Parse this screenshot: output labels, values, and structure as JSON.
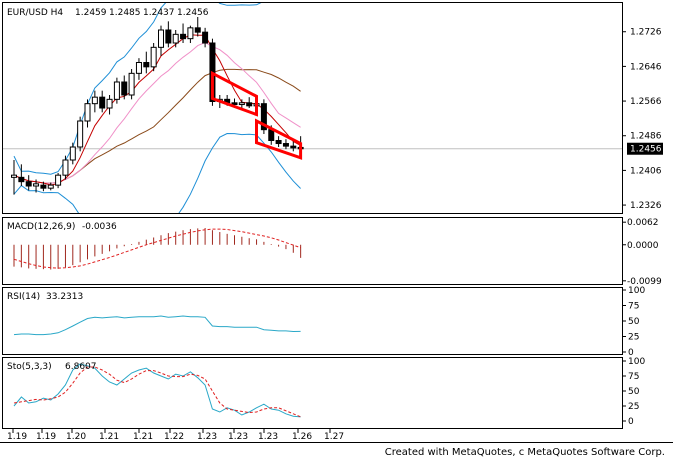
{
  "chart_data": [
    {
      "type": "candlestick",
      "title": "EUR/USD H4",
      "ohlc_readout": [
        "1.2459",
        "1.2485",
        "1.2437",
        "1.2456"
      ],
      "current_price_label": "1.2456",
      "current_price": 1.2456,
      "ylim": [
        1.231,
        1.279
      ],
      "y_ticks": [
        "1.2726",
        "1.2646",
        "1.2566",
        "1.2486",
        "1.2406",
        "1.2326"
      ],
      "x_tick_labels": [
        "1.19",
        "1.19",
        "1.20",
        "1.21",
        "1.21",
        "1.22",
        "1.23",
        "1.23",
        "1.23",
        "1.26",
        "1.27"
      ],
      "candles": [
        {
          "o": 1.239,
          "h": 1.243,
          "l": 1.235,
          "c": 1.2395
        },
        {
          "o": 1.239,
          "h": 1.242,
          "l": 1.237,
          "c": 1.238
        },
        {
          "o": 1.238,
          "h": 1.2395,
          "l": 1.236,
          "c": 1.237
        },
        {
          "o": 1.237,
          "h": 1.2385,
          "l": 1.2355,
          "c": 1.2375
        },
        {
          "o": 1.2372,
          "h": 1.238,
          "l": 1.2358,
          "c": 1.2365
        },
        {
          "o": 1.2365,
          "h": 1.2378,
          "l": 1.236,
          "c": 1.2372
        },
        {
          "o": 1.2372,
          "h": 1.24,
          "l": 1.2365,
          "c": 1.2395
        },
        {
          "o": 1.2395,
          "h": 1.244,
          "l": 1.2385,
          "c": 1.243
        },
        {
          "o": 1.243,
          "h": 1.247,
          "l": 1.242,
          "c": 1.246
        },
        {
          "o": 1.246,
          "h": 1.253,
          "l": 1.245,
          "c": 1.252
        },
        {
          "o": 1.252,
          "h": 1.257,
          "l": 1.2505,
          "c": 1.256
        },
        {
          "o": 1.256,
          "h": 1.259,
          "l": 1.254,
          "c": 1.2575
        },
        {
          "o": 1.2575,
          "h": 1.259,
          "l": 1.254,
          "c": 1.255
        },
        {
          "o": 1.255,
          "h": 1.258,
          "l": 1.2535,
          "c": 1.257
        },
        {
          "o": 1.257,
          "h": 1.262,
          "l": 1.256,
          "c": 1.261
        },
        {
          "o": 1.261,
          "h": 1.2625,
          "l": 1.257,
          "c": 1.258
        },
        {
          "o": 1.258,
          "h": 1.264,
          "l": 1.257,
          "c": 1.263
        },
        {
          "o": 1.263,
          "h": 1.2665,
          "l": 1.2615,
          "c": 1.2655
        },
        {
          "o": 1.2655,
          "h": 1.268,
          "l": 1.263,
          "c": 1.2645
        },
        {
          "o": 1.2645,
          "h": 1.27,
          "l": 1.2635,
          "c": 1.269
        },
        {
          "o": 1.269,
          "h": 1.274,
          "l": 1.267,
          "c": 1.273
        },
        {
          "o": 1.273,
          "h": 1.275,
          "l": 1.269,
          "c": 1.27
        },
        {
          "o": 1.27,
          "h": 1.273,
          "l": 1.269,
          "c": 1.272
        },
        {
          "o": 1.272,
          "h": 1.2745,
          "l": 1.27,
          "c": 1.271
        },
        {
          "o": 1.271,
          "h": 1.274,
          "l": 1.27,
          "c": 1.2735
        },
        {
          "o": 1.2735,
          "h": 1.276,
          "l": 1.2715,
          "c": 1.2725
        },
        {
          "o": 1.2725,
          "h": 1.2735,
          "l": 1.269,
          "c": 1.27
        },
        {
          "o": 1.27,
          "h": 1.271,
          "l": 1.2555,
          "c": 1.2565
        },
        {
          "o": 1.2565,
          "h": 1.258,
          "l": 1.255,
          "c": 1.257
        },
        {
          "o": 1.257,
          "h": 1.258,
          "l": 1.2555,
          "c": 1.2562
        },
        {
          "o": 1.2562,
          "h": 1.2572,
          "l": 1.255,
          "c": 1.2558
        },
        {
          "o": 1.2558,
          "h": 1.257,
          "l": 1.2548,
          "c": 1.2562
        },
        {
          "o": 1.2562,
          "h": 1.2575,
          "l": 1.255,
          "c": 1.2555
        },
        {
          "o": 1.2555,
          "h": 1.2568,
          "l": 1.2545,
          "c": 1.256
        },
        {
          "o": 1.256,
          "h": 1.257,
          "l": 1.249,
          "c": 1.25
        },
        {
          "o": 1.25,
          "h": 1.251,
          "l": 1.2465,
          "c": 1.2475
        },
        {
          "o": 1.2475,
          "h": 1.2485,
          "l": 1.246,
          "c": 1.2468
        },
        {
          "o": 1.2468,
          "h": 1.2478,
          "l": 1.2455,
          "c": 1.2462
        },
        {
          "o": 1.2462,
          "h": 1.2475,
          "l": 1.245,
          "c": 1.2458
        },
        {
          "o": 1.2459,
          "h": 1.2485,
          "l": 1.2437,
          "c": 1.2456
        }
      ],
      "channels": [
        [
          [
            27,
            1.263
          ],
          [
            33,
            1.2577
          ],
          [
            33,
            1.2535
          ],
          [
            27,
            1.2572
          ]
        ],
        [
          [
            33,
            1.252
          ],
          [
            39,
            1.2468
          ],
          [
            39,
            1.2435
          ],
          [
            33,
            1.247
          ]
        ]
      ]
    },
    {
      "type": "bar",
      "title": "MACD(12,26,9)",
      "value_label": "-0.0036",
      "ylim": [
        -0.0105,
        0.0068
      ],
      "y_ticks": [
        "0.0062",
        "0.0000",
        "-0.0099"
      ],
      "macd": [
        -0.006,
        -0.0062,
        -0.0065,
        -0.0066,
        -0.0067,
        -0.0068,
        -0.0066,
        -0.0062,
        -0.0056,
        -0.0048,
        -0.004,
        -0.0032,
        -0.0025,
        -0.0018,
        -0.001,
        -0.0004,
        0.0002,
        0.0008,
        0.0014,
        0.002,
        0.0026,
        0.0032,
        0.0036,
        0.004,
        0.0043,
        0.0045,
        0.0046,
        0.004,
        0.0035,
        0.003,
        0.0026,
        0.0022,
        0.0018,
        0.0015,
        0.0008,
        0.0002,
        -0.0005,
        -0.0012,
        -0.0022,
        -0.0036
      ],
      "signal": [
        -0.004,
        -0.0046,
        -0.0052,
        -0.0057,
        -0.0061,
        -0.0063,
        -0.0064,
        -0.0063,
        -0.0061,
        -0.0058,
        -0.0053,
        -0.0047,
        -0.0041,
        -0.0035,
        -0.0028,
        -0.0021,
        -0.0014,
        -0.0007,
        0.0,
        0.0006,
        0.0012,
        0.0018,
        0.0024,
        0.0029,
        0.0034,
        0.0038,
        0.0041,
        0.0043,
        0.0043,
        0.0042,
        0.0039,
        0.0036,
        0.0032,
        0.0028,
        0.0024,
        0.0019,
        0.0013,
        0.0006,
        -0.0001,
        -0.0008
      ]
    },
    {
      "type": "line",
      "title": "RSI(14)",
      "value_label": "33.2313",
      "ylim": [
        0,
        100
      ],
      "y_ticks": [
        "100",
        "75",
        "50",
        "25",
        "0"
      ],
      "values": [
        28,
        29,
        29,
        28,
        28,
        29,
        31,
        36,
        42,
        48,
        54,
        56,
        55,
        56,
        57,
        55,
        56,
        57,
        57,
        57,
        58,
        56,
        57,
        58,
        57,
        57,
        56,
        42,
        41,
        41,
        40,
        40,
        40,
        40,
        36,
        35,
        34,
        34,
        33,
        33.2
      ]
    },
    {
      "type": "line",
      "title": "Sto(5,3,3)",
      "value_label": "6.8607",
      "ylim": [
        0,
        100
      ],
      "y_ticks": [
        "100",
        "75",
        "50",
        "25",
        "0"
      ],
      "main": [
        25,
        40,
        30,
        32,
        38,
        35,
        45,
        60,
        85,
        95,
        92,
        88,
        75,
        65,
        60,
        70,
        80,
        85,
        88,
        80,
        75,
        70,
        78,
        75,
        82,
        72,
        60,
        20,
        15,
        22,
        18,
        10,
        15,
        22,
        28,
        20,
        18,
        12,
        8,
        6.9
      ],
      "signal": [
        30,
        32,
        34,
        36,
        35,
        37,
        40,
        48,
        63,
        80,
        90,
        90,
        85,
        78,
        68,
        64,
        70,
        78,
        84,
        84,
        80,
        75,
        74,
        74,
        78,
        76,
        70,
        50,
        30,
        20,
        18,
        16,
        14,
        15,
        20,
        22,
        22,
        17,
        12,
        7
      ]
    }
  ],
  "footer": {
    "credit": "Created with MetaQuotes, c MetaQuotes Software Corp."
  },
  "colors": {
    "background": "#ffffff",
    "axis": "#000000",
    "bb_bands": "#1e8fd6",
    "ma_fast": "#c40000",
    "ma_mid": "#f090c8",
    "ma_slow": "#8a4a1a",
    "channel": "#ff0000",
    "price_line": "#c0c0c0",
    "macd_bars": "#a0281e",
    "macd_signal": "#e02020",
    "rsi": "#2aa8c8",
    "sto_main": "#2aa8c8",
    "sto_signal": "#e02020"
  }
}
